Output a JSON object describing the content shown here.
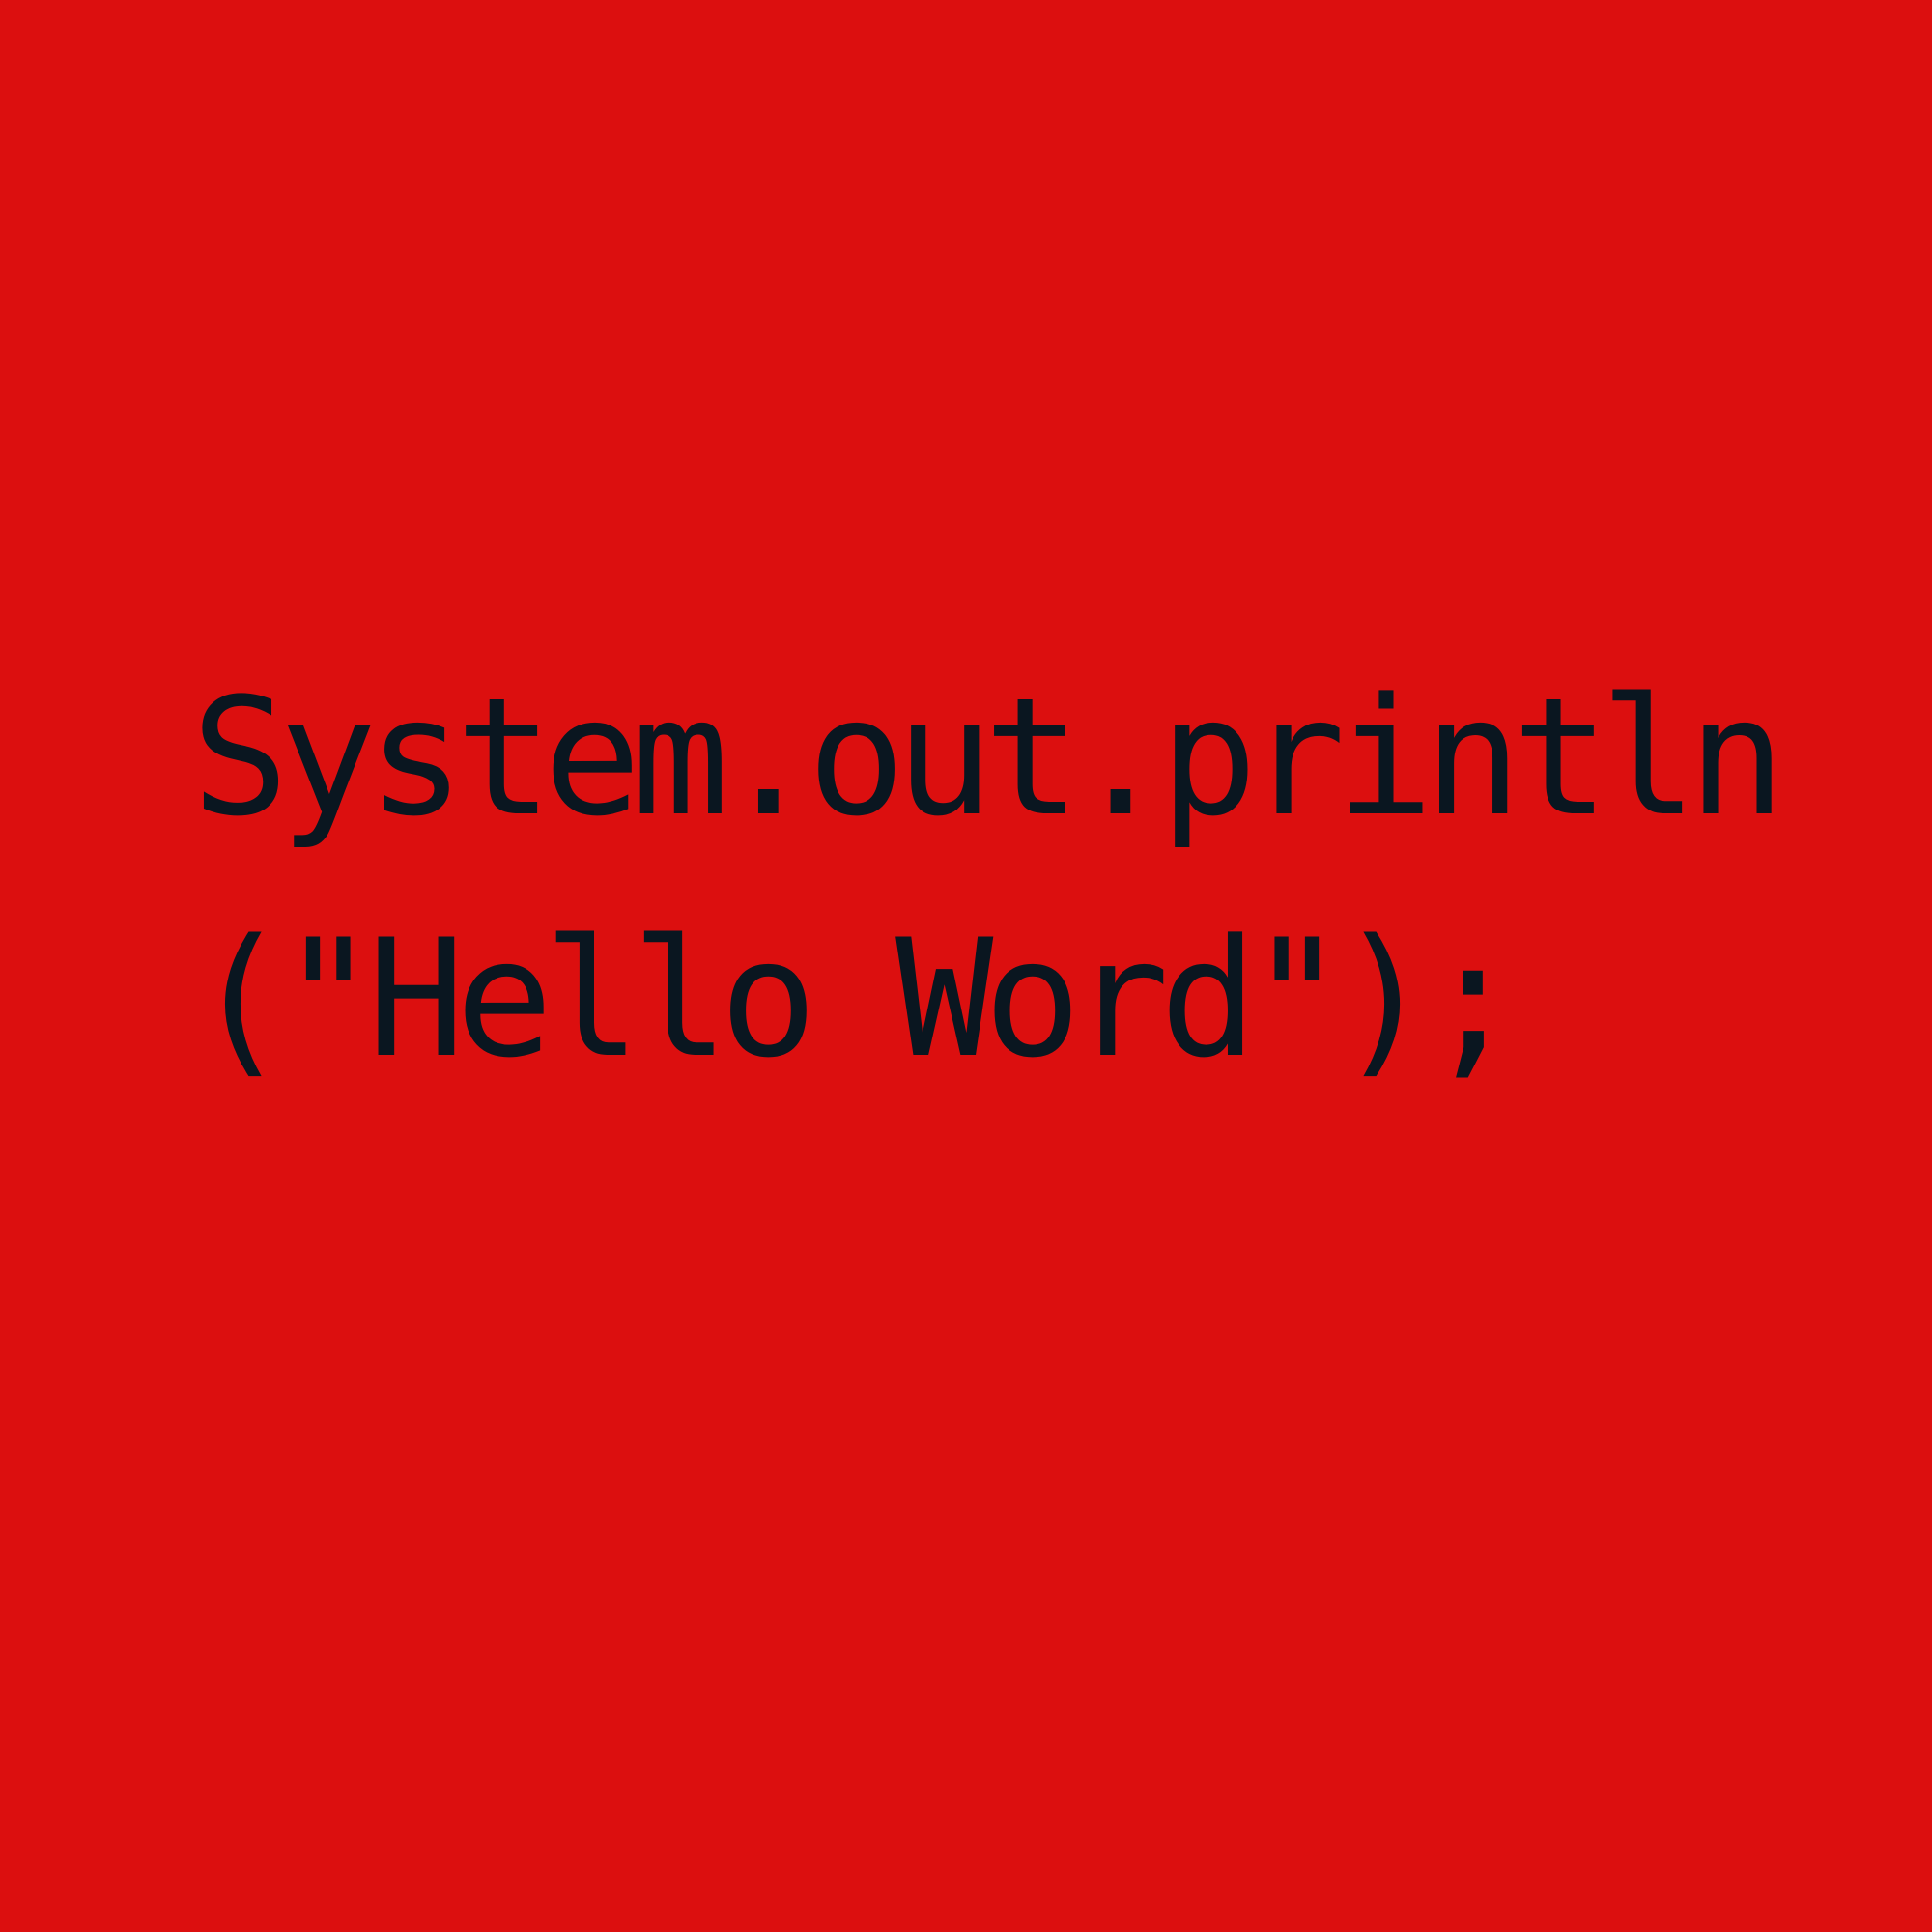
{
  "code": {
    "lines": [
      "System.out.println",
      "(\"Hello Word\");"
    ]
  }
}
